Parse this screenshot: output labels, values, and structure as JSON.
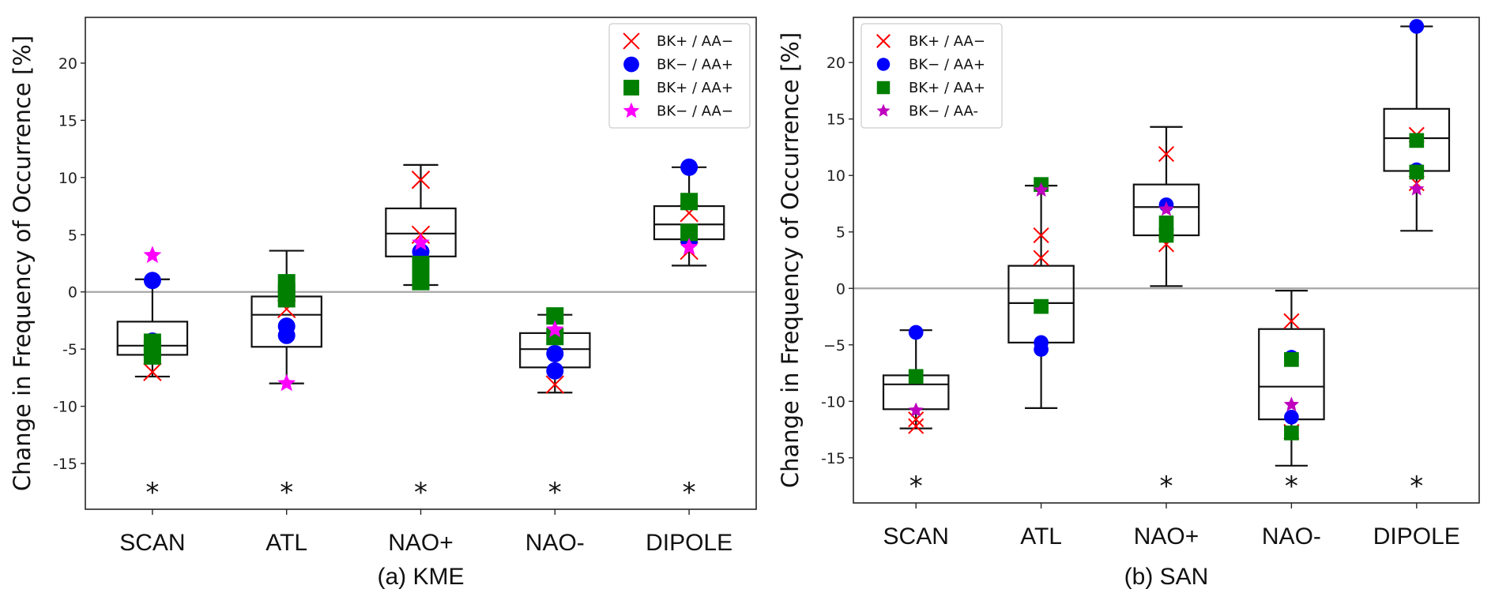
{
  "chart_data": [
    {
      "type": "box",
      "panel": "a",
      "title": "",
      "xlabel": "(a)  KME",
      "ylabel": "Change in Frequency of Occurrence [%]",
      "categories": [
        "SCAN",
        "ATL",
        "NAO+",
        "NAO-",
        "DIPOLE"
      ],
      "ylim": [
        -19,
        24
      ],
      "yticks": [
        -15,
        -10,
        -5,
        0,
        5,
        10,
        15,
        20
      ],
      "ytick_labels": [
        "-15",
        "-10",
        "-5",
        "0",
        "5",
        "10",
        "15",
        "20"
      ],
      "zero_line": true,
      "grid": false,
      "legend_position": "top-right",
      "significance_marker": "*",
      "significant": [
        true,
        true,
        true,
        true,
        true
      ],
      "boxes": [
        {
          "q1": -5.5,
          "median": -4.7,
          "q3": -2.6,
          "whisker_low": -7.4,
          "whisker_high": 1.1
        },
        {
          "q1": -4.8,
          "median": -2.0,
          "q3": -0.4,
          "whisker_low": -8.0,
          "whisker_high": 3.6
        },
        {
          "q1": 3.1,
          "median": 5.1,
          "q3": 7.3,
          "whisker_low": 0.6,
          "whisker_high": 11.1
        },
        {
          "q1": -6.6,
          "median": -5.0,
          "q3": -3.6,
          "whisker_low": -8.8,
          "whisker_high": -2.0
        },
        {
          "q1": 4.6,
          "median": 5.9,
          "q3": 7.5,
          "whisker_low": 2.3,
          "whisker_high": 10.9
        }
      ],
      "series": [
        {
          "name": "BK+ / AA−",
          "marker": "x",
          "color": "#ff0000",
          "values": [
            [
              -7.0
            ],
            [
              -1.5
            ],
            [
              9.8,
              5.0
            ],
            [
              -8.1
            ],
            [
              6.9,
              3.6
            ]
          ]
        },
        {
          "name": "BK− / AA+",
          "marker": "circle",
          "color": "#0000ff",
          "values": [
            [
              1.0,
              -4.3
            ],
            [
              -3.0,
              -3.8
            ],
            [
              3.5
            ],
            [
              -5.4,
              -6.9
            ],
            [
              10.9,
              4.5
            ]
          ]
        },
        {
          "name": "BK+ / AA+",
          "marker": "square",
          "color": "#007f00",
          "values": [
            [
              -4.4,
              -5.0,
              -5.6
            ],
            [
              0.8,
              0.0,
              -0.6
            ],
            [
              2.4,
              1.5,
              0.9
            ],
            [
              -2.1,
              -3.9
            ],
            [
              7.9,
              5.2
            ]
          ]
        },
        {
          "name": "BK− / AA−",
          "marker": "star",
          "color": "#ff00ff",
          "values": [
            [
              3.2
            ],
            [
              -8.0
            ],
            [
              4.3
            ],
            [
              -3.3
            ],
            [
              3.9
            ]
          ]
        }
      ]
    },
    {
      "type": "box",
      "panel": "b",
      "title": "",
      "xlabel": "(b) SAN",
      "ylabel": "Change in Frequency of Occurrence [%]",
      "categories": [
        "SCAN",
        "ATL",
        "NAO+",
        "NAO-",
        "DIPOLE"
      ],
      "ylim": [
        -19,
        24
      ],
      "yticks": [
        -15,
        -10,
        -5,
        0,
        5,
        10,
        15,
        20
      ],
      "ytick_labels": [
        "-15",
        "-10",
        "−5",
        "0",
        "5",
        "10",
        "15",
        "20"
      ],
      "zero_line": true,
      "grid": false,
      "legend_position": "top-left",
      "significance_marker": "*",
      "significant": [
        true,
        false,
        true,
        true,
        true
      ],
      "boxes": [
        {
          "q1": -10.7,
          "median": -8.5,
          "q3": -7.7,
          "whisker_low": -12.4,
          "whisker_high": -3.7
        },
        {
          "q1": -4.8,
          "median": -1.3,
          "q3": 2.0,
          "whisker_low": -10.6,
          "whisker_high": 9.1
        },
        {
          "q1": 4.7,
          "median": 7.2,
          "q3": 9.2,
          "whisker_low": 0.2,
          "whisker_high": 14.3
        },
        {
          "q1": -11.6,
          "median": -8.7,
          "q3": -3.6,
          "whisker_low": -15.7,
          "whisker_high": -0.2
        },
        {
          "q1": 10.4,
          "median": 13.3,
          "q3": 15.9,
          "whisker_low": 5.1,
          "whisker_high": 23.2
        }
      ],
      "series": [
        {
          "name": "BK+ / AA−",
          "marker": "x",
          "color": "#ff0000",
          "values": [
            [
              -11.6,
              -12.2
            ],
            [
              4.7,
              2.7
            ],
            [
              11.9,
              3.9
            ],
            [
              -2.9,
              -12.7
            ],
            [
              13.6,
              9.3
            ]
          ]
        },
        {
          "name": "BK− / AA+",
          "marker": "circle",
          "color": "#0000ff",
          "values": [
            [
              -3.9
            ],
            [
              -4.8,
              -5.4
            ],
            [
              7.4,
              5.2
            ],
            [
              -6.1,
              -11.4
            ],
            [
              23.2,
              10.5
            ]
          ]
        },
        {
          "name": "BK+ / AA+",
          "marker": "square",
          "color": "#007f00",
          "values": [
            [
              -7.8
            ],
            [
              9.2,
              -1.6
            ],
            [
              5.8,
              4.7
            ],
            [
              -6.3,
              -12.8
            ],
            [
              13.1,
              10.3
            ]
          ]
        },
        {
          "name": "BK− / AA-",
          "marker": "star",
          "color": "#bf00bf",
          "values": [
            [
              -10.8
            ],
            [
              8.7
            ],
            [
              7.0
            ],
            [
              -10.3
            ],
            [
              8.8
            ]
          ]
        }
      ]
    }
  ]
}
